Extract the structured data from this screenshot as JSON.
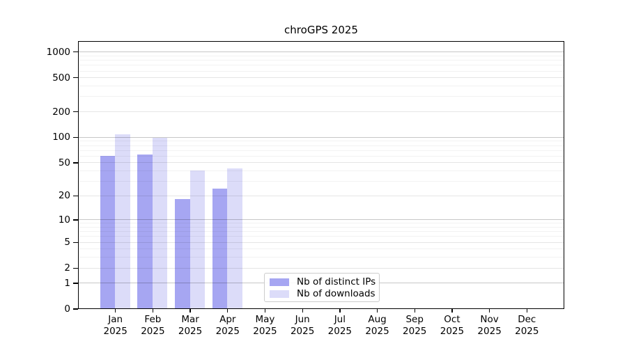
{
  "figure": {
    "background": "#ffffff"
  },
  "chart_data": {
    "type": "bar",
    "title": "chroGPS 2025",
    "categories": [
      "Jan 2025",
      "Feb 2025",
      "Mar 2025",
      "Apr 2025",
      "May 2025",
      "Jun 2025",
      "Jul 2025",
      "Aug 2025",
      "Sep 2025",
      "Oct 2025",
      "Nov 2025",
      "Dec 2025"
    ],
    "series": [
      {
        "name": "Nb of distinct IPs",
        "color": "#a6a6f2",
        "values": [
          59,
          61,
          18,
          24,
          0,
          0,
          0,
          0,
          0,
          0,
          0,
          0
        ]
      },
      {
        "name": "Nb of downloads",
        "color": "#dcdcf9",
        "values": [
          107,
          97,
          40,
          42,
          0,
          0,
          0,
          0,
          0,
          0,
          0,
          0
        ]
      }
    ],
    "yaxis": {
      "scale": "log10(value+1)",
      "tick_labels": [
        0,
        1,
        2,
        5,
        10,
        20,
        50,
        100,
        200,
        500,
        1000
      ],
      "max": 1000
    },
    "xlabel": "",
    "ylabel": "",
    "grid": {
      "orientation": "horizontal",
      "minor_lines": true,
      "drawn_over_bars": true
    },
    "legend": {
      "position": "lower-center",
      "entries": [
        "Nb of distinct IPs",
        "Nb of downloads"
      ]
    }
  }
}
